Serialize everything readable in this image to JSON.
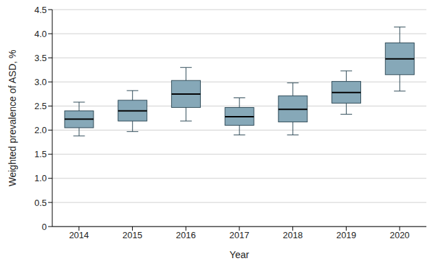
{
  "chart_data": {
    "type": "box",
    "x_label": "Year",
    "y_label": "Weighted prevalence of ASD, %",
    "categories": [
      "2014",
      "2015",
      "2016",
      "2017",
      "2018",
      "2019",
      "2020"
    ],
    "min": [
      1.88,
      1.97,
      2.19,
      1.9,
      1.9,
      2.33,
      2.81
    ],
    "q1": [
      2.05,
      2.19,
      2.47,
      2.1,
      2.17,
      2.56,
      3.15
    ],
    "median": [
      2.23,
      2.4,
      2.75,
      2.28,
      2.43,
      2.78,
      3.48
    ],
    "q3": [
      2.4,
      2.62,
      3.03,
      2.47,
      2.71,
      3.01,
      3.81
    ],
    "max": [
      2.58,
      2.82,
      3.3,
      2.67,
      2.98,
      3.23,
      4.14
    ],
    "color": "#86a8b8",
    "ylim": [
      0,
      4.5
    ],
    "yticks": [
      0,
      0.5,
      {
        "value": 1,
        "label": "1.0"
      },
      1.5,
      {
        "value": 2,
        "label": "2.0"
      },
      2.5,
      {
        "value": 3,
        "label": "3.0"
      },
      3.5,
      {
        "value": 4,
        "label": "4.0"
      },
      4.5
    ],
    "grid": true
  }
}
